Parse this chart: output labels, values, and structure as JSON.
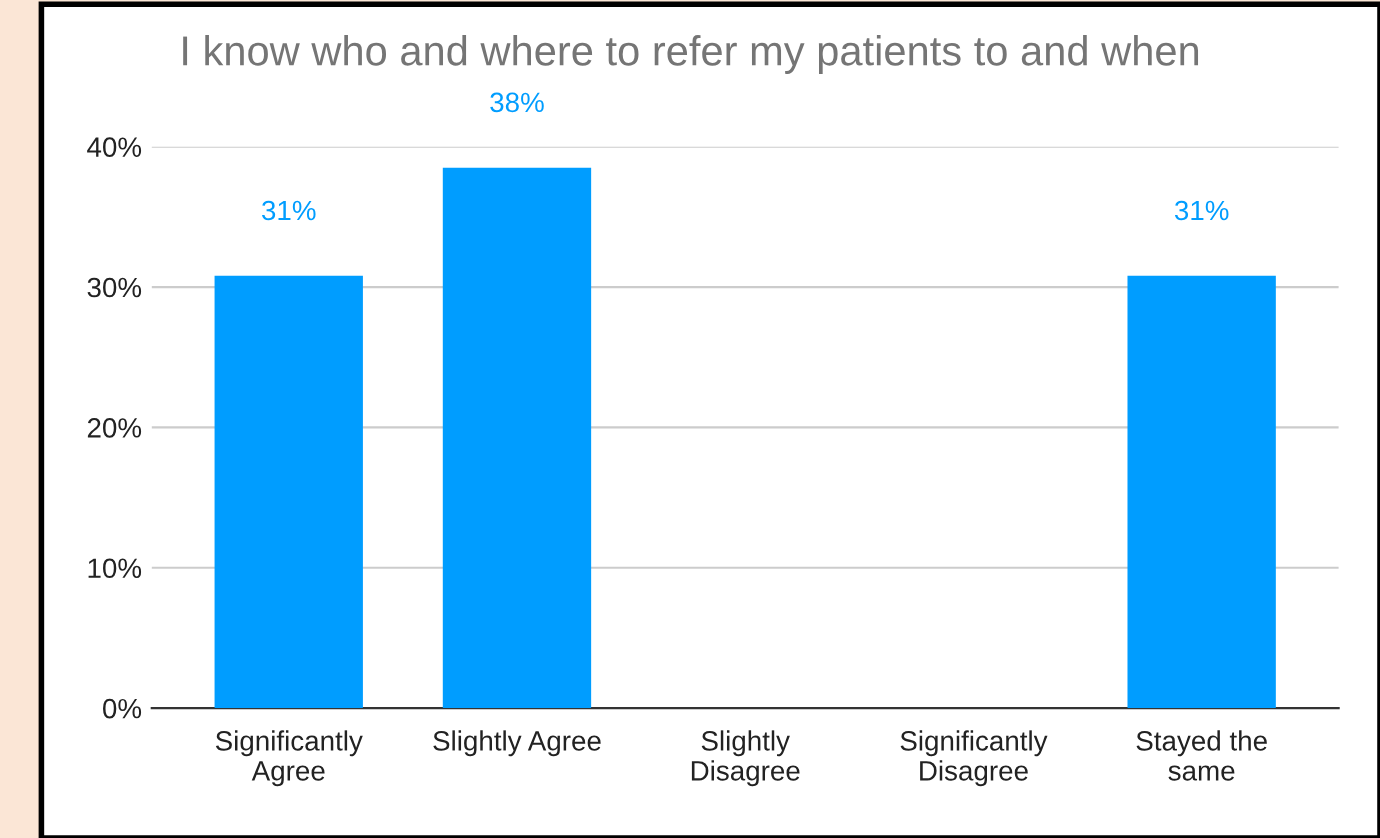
{
  "chart_data": {
    "type": "bar",
    "title": "I know who and where to refer my patients to and when",
    "categories": [
      "Significantly\nAgree",
      "Slightly Agree",
      "Slightly\nDisagree",
      "Significantly\nDisagree",
      "Stayed the\nsame"
    ],
    "values": [
      30.8,
      38.5,
      0,
      0,
      30.8
    ],
    "value_labels": [
      "31%",
      "38%",
      null,
      null,
      "31%"
    ],
    "color": "#009dff",
    "ylim": [
      0,
      40
    ],
    "yticks": [
      {
        "value": 0,
        "label": "0%"
      },
      {
        "value": 10,
        "label": "10%"
      },
      {
        "value": 20,
        "label": "20%"
      },
      {
        "value": 30,
        "label": "30%"
      },
      {
        "value": 40,
        "label": "40%"
      }
    ],
    "grid": "y"
  }
}
